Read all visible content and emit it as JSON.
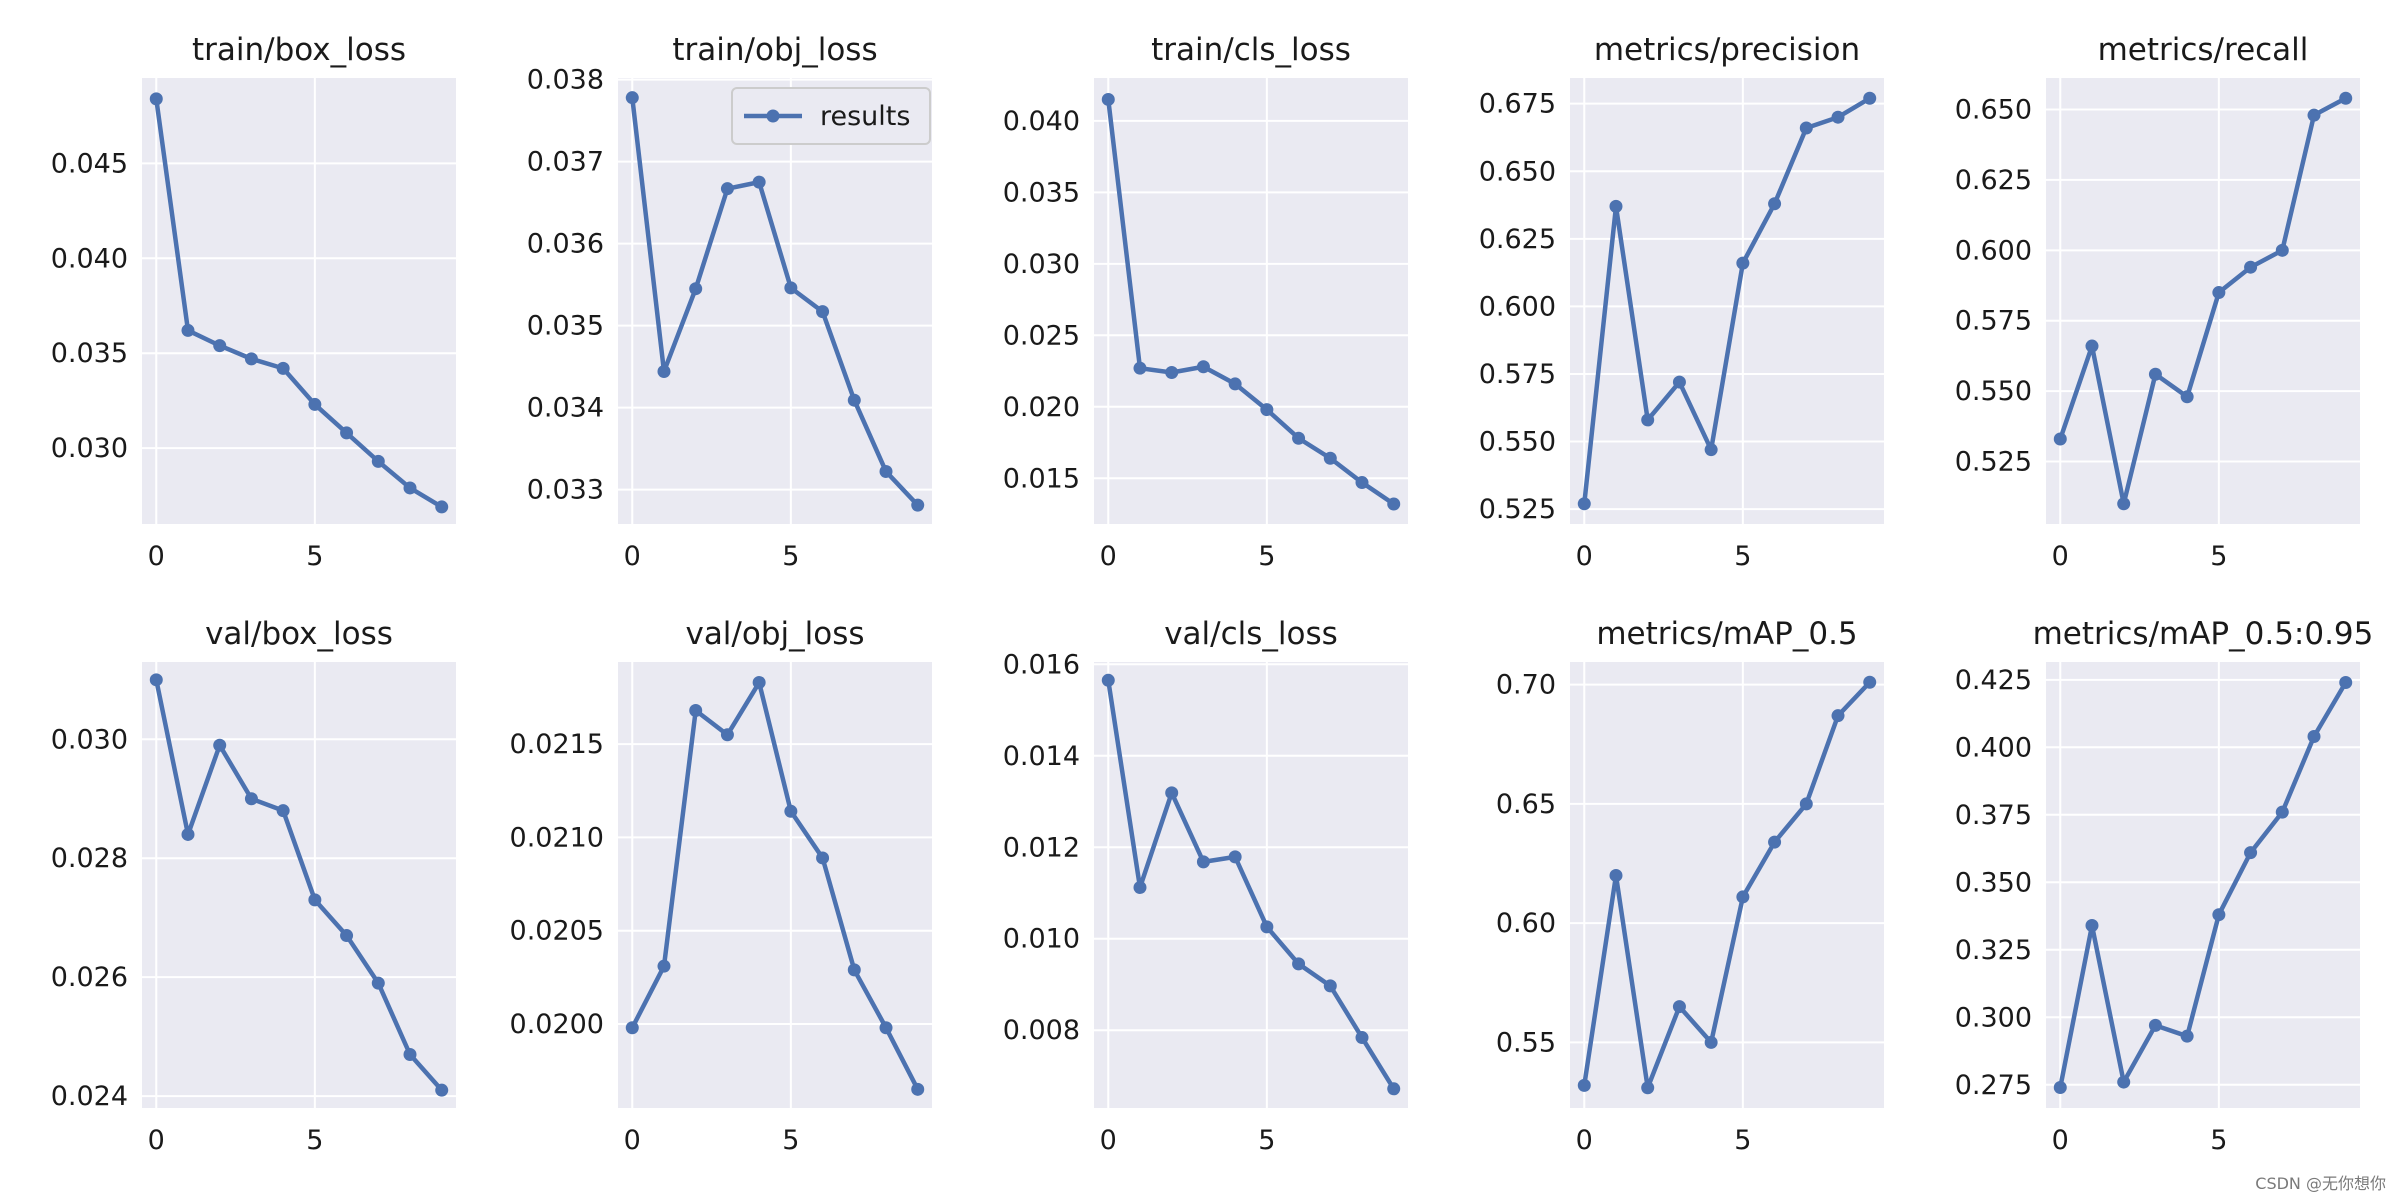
{
  "watermark": "CSDN @无你想你",
  "series_color": "#4c72b0",
  "chart_data": [
    {
      "type": "line",
      "title": "train/box_loss",
      "x": [
        0,
        1,
        2,
        3,
        4,
        5,
        6,
        7,
        8,
        9
      ],
      "series": [
        {
          "name": "results",
          "values": [
            0.0484,
            0.0362,
            0.0354,
            0.0347,
            0.0342,
            0.0323,
            0.0308,
            0.0293,
            0.0279,
            0.0269
          ]
        }
      ],
      "xlim": [
        -0.45,
        9.45
      ],
      "ylim": [
        0.026,
        0.0495
      ],
      "xticks": [
        0,
        5
      ],
      "xtick_labels": [
        "0",
        "5"
      ],
      "yticks": [
        0.03,
        0.035,
        0.04,
        0.045
      ],
      "ytick_labels": [
        "0.030",
        "0.035",
        "0.040",
        "0.045"
      ],
      "legend": null
    },
    {
      "type": "line",
      "title": "train/obj_loss",
      "x": [
        0,
        1,
        2,
        3,
        4,
        5,
        6,
        7,
        8,
        9
      ],
      "series": [
        {
          "name": "results",
          "values": [
            0.03778,
            0.03444,
            0.03545,
            0.03667,
            0.03675,
            0.03546,
            0.03517,
            0.03409,
            0.03322,
            0.03281
          ]
        }
      ],
      "xlim": [
        -0.45,
        9.45
      ],
      "ylim": [
        0.03258,
        0.03802
      ],
      "xticks": [
        0,
        5
      ],
      "xtick_labels": [
        "0",
        "5"
      ],
      "yticks": [
        0.033,
        0.034,
        0.035,
        0.036,
        0.037,
        0.038
      ],
      "ytick_labels": [
        "0.033",
        "0.034",
        "0.035",
        "0.036",
        "0.037",
        "0.038"
      ],
      "legend": {
        "label": "results",
        "position": "upper-right"
      }
    },
    {
      "type": "line",
      "title": "train/cls_loss",
      "x": [
        0,
        1,
        2,
        3,
        4,
        5,
        6,
        7,
        8,
        9
      ],
      "series": [
        {
          "name": "results",
          "values": [
            0.0415,
            0.0227,
            0.0224,
            0.0228,
            0.0216,
            0.0198,
            0.0178,
            0.0164,
            0.0147,
            0.0132
          ]
        }
      ],
      "xlim": [
        -0.45,
        9.45
      ],
      "ylim": [
        0.0118,
        0.043
      ],
      "xticks": [
        0,
        5
      ],
      "xtick_labels": [
        "0",
        "5"
      ],
      "yticks": [
        0.015,
        0.02,
        0.025,
        0.03,
        0.035,
        0.04
      ],
      "ytick_labels": [
        "0.015",
        "0.020",
        "0.025",
        "0.030",
        "0.035",
        "0.040"
      ],
      "legend": null
    },
    {
      "type": "line",
      "title": "metrics/precision",
      "x": [
        0,
        1,
        2,
        3,
        4,
        5,
        6,
        7,
        8,
        9
      ],
      "series": [
        {
          "name": "results",
          "values": [
            0.527,
            0.637,
            0.558,
            0.572,
            0.547,
            0.616,
            0.638,
            0.666,
            0.67,
            0.677
          ]
        }
      ],
      "xlim": [
        -0.45,
        9.45
      ],
      "ylim": [
        0.5195,
        0.6845
      ],
      "xticks": [
        0,
        5
      ],
      "xtick_labels": [
        "0",
        "5"
      ],
      "yticks": [
        0.525,
        0.55,
        0.575,
        0.6,
        0.625,
        0.65,
        0.675
      ],
      "ytick_labels": [
        "0.525",
        "0.550",
        "0.575",
        "0.600",
        "0.625",
        "0.650",
        "0.675"
      ],
      "legend": null
    },
    {
      "type": "line",
      "title": "metrics/recall",
      "x": [
        0,
        1,
        2,
        3,
        4,
        5,
        6,
        7,
        8,
        9
      ],
      "series": [
        {
          "name": "results",
          "values": [
            0.533,
            0.566,
            0.51,
            0.556,
            0.548,
            0.585,
            0.594,
            0.6,
            0.648,
            0.654
          ]
        }
      ],
      "xlim": [
        -0.45,
        9.45
      ],
      "ylim": [
        0.5028,
        0.6612
      ],
      "xticks": [
        0,
        5
      ],
      "xtick_labels": [
        "0",
        "5"
      ],
      "yticks": [
        0.525,
        0.55,
        0.575,
        0.6,
        0.625,
        0.65
      ],
      "ytick_labels": [
        "0.525",
        "0.550",
        "0.575",
        "0.600",
        "0.625",
        "0.650"
      ],
      "legend": null
    },
    {
      "type": "line",
      "title": "val/box_loss",
      "x": [
        0,
        1,
        2,
        3,
        4,
        5,
        6,
        7,
        8,
        9
      ],
      "series": [
        {
          "name": "results",
          "values": [
            0.031,
            0.0284,
            0.0299,
            0.029,
            0.0288,
            0.0273,
            0.0267,
            0.0259,
            0.0247,
            0.0241
          ]
        }
      ],
      "xlim": [
        -0.45,
        9.45
      ],
      "ylim": [
        0.0238,
        0.0313
      ],
      "xticks": [
        0,
        5
      ],
      "xtick_labels": [
        "0",
        "5"
      ],
      "yticks": [
        0.024,
        0.026,
        0.028,
        0.03
      ],
      "ytick_labels": [
        "0.024",
        "0.026",
        "0.028",
        "0.030"
      ],
      "legend": null
    },
    {
      "type": "line",
      "title": "val/obj_loss",
      "x": [
        0,
        1,
        2,
        3,
        4,
        5,
        6,
        7,
        8,
        9
      ],
      "series": [
        {
          "name": "results",
          "values": [
            0.01998,
            0.02031,
            0.02168,
            0.02155,
            0.02183,
            0.02114,
            0.02089,
            0.02029,
            0.01998,
            0.01965
          ]
        }
      ],
      "xlim": [
        -0.45,
        9.45
      ],
      "ylim": [
        0.01955,
        0.02194
      ],
      "xticks": [
        0,
        5
      ],
      "xtick_labels": [
        "0",
        "5"
      ],
      "yticks": [
        0.02,
        0.0205,
        0.021,
        0.0215
      ],
      "ytick_labels": [
        "0.0200",
        "0.0205",
        "0.0210",
        "0.0215"
      ],
      "legend": null
    },
    {
      "type": "line",
      "title": "val/cls_loss",
      "x": [
        0,
        1,
        2,
        3,
        4,
        5,
        6,
        7,
        8,
        9
      ],
      "series": [
        {
          "name": "results",
          "values": [
            0.01565,
            0.01112,
            0.01319,
            0.01168,
            0.01179,
            0.01026,
            0.00945,
            0.00897,
            0.00784,
            0.00672
          ]
        }
      ],
      "xlim": [
        -0.45,
        9.45
      ],
      "ylim": [
        0.0063,
        0.01605
      ],
      "xticks": [
        0,
        5
      ],
      "xtick_labels": [
        "0",
        "5"
      ],
      "yticks": [
        0.008,
        0.01,
        0.012,
        0.014,
        0.016
      ],
      "ytick_labels": [
        "0.008",
        "0.010",
        "0.012",
        "0.014",
        "0.016"
      ],
      "legend": null
    },
    {
      "type": "line",
      "title": "metrics/mAP_0.5",
      "x": [
        0,
        1,
        2,
        3,
        4,
        5,
        6,
        7,
        8,
        9
      ],
      "series": [
        {
          "name": "results",
          "values": [
            0.532,
            0.62,
            0.531,
            0.565,
            0.55,
            0.611,
            0.634,
            0.65,
            0.687,
            0.701
          ]
        }
      ],
      "xlim": [
        -0.45,
        9.45
      ],
      "ylim": [
        0.5225,
        0.7095
      ],
      "xticks": [
        0,
        5
      ],
      "xtick_labels": [
        "0",
        "5"
      ],
      "yticks": [
        0.55,
        0.6,
        0.65,
        0.7
      ],
      "ytick_labels": [
        "0.55",
        "0.60",
        "0.65",
        "0.70"
      ],
      "legend": null
    },
    {
      "type": "line",
      "title": "metrics/mAP_0.5:0.95",
      "x": [
        0,
        1,
        2,
        3,
        4,
        5,
        6,
        7,
        8,
        9
      ],
      "series": [
        {
          "name": "results",
          "values": [
            0.274,
            0.334,
            0.276,
            0.297,
            0.293,
            0.338,
            0.361,
            0.376,
            0.404,
            0.424
          ]
        }
      ],
      "xlim": [
        -0.45,
        9.45
      ],
      "ylim": [
        0.2664,
        0.4316
      ],
      "xticks": [
        0,
        5
      ],
      "xtick_labels": [
        "0",
        "5"
      ],
      "yticks": [
        0.275,
        0.3,
        0.325,
        0.35,
        0.375,
        0.4,
        0.425
      ],
      "ytick_labels": [
        "0.275",
        "0.300",
        "0.325",
        "0.350",
        "0.375",
        "0.400",
        "0.425"
      ],
      "legend": null
    }
  ]
}
